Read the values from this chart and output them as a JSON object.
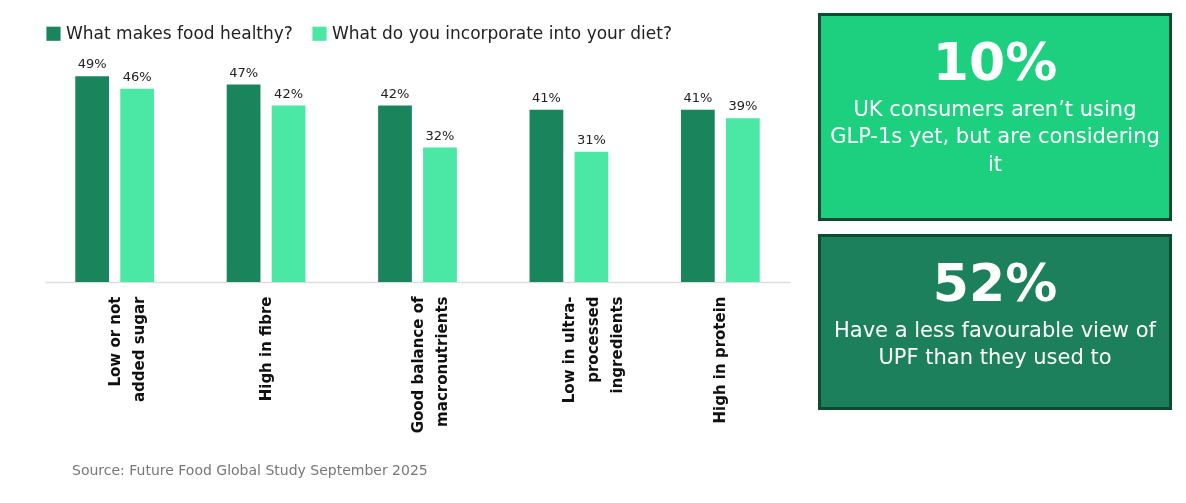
{
  "chart_data": [
    {
      "type": "bar",
      "categories": [
        "Low or not added sugar",
        "High in fibre",
        "Good balance of macronutrients",
        "Low in ultra-processed ingredients",
        "High in protein"
      ],
      "series": [
        {
          "name": "What makes food healthy?",
          "color": "#1a855d",
          "values": [
            49,
            47,
            42,
            41,
            41
          ],
          "value_labels": [
            "49%",
            "47%",
            "42%",
            "41%",
            "41%"
          ]
        },
        {
          "name": "What do you incorporate into your diet?",
          "color": "#4ae8a4",
          "values": [
            46,
            42,
            32,
            31,
            39
          ],
          "value_labels": [
            "46%",
            "42%",
            "32%",
            "31%",
            "39%"
          ]
        }
      ],
      "legend": "top left",
      "annotations": [
        "Source: Future Food Global Study September 2025"
      ]
    },
    {
      "type": "other",
      "title": "10%",
      "annotations": [
        "UK consumers aren’t using GLP-1s yet, but are considering it"
      ]
    },
    {
      "type": "other",
      "title": "52%",
      "annotations": [
        "Have a less favourable view of UPF than they used to"
      ]
    }
  ]
}
